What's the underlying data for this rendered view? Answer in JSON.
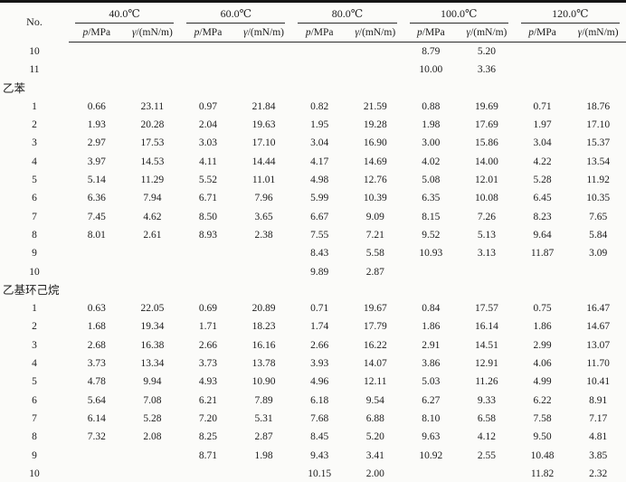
{
  "header": {
    "row_no": "No.",
    "p_symbol": "p",
    "p_unit": "/MPa",
    "gamma_symbol": "γ",
    "gamma_unit": "/(mN/m)"
  },
  "chart_data": {
    "type": "table",
    "row_header": "No.",
    "column_groups": [
      {
        "label": "40.0℃",
        "subcolumns": [
          "p/MPa",
          "γ/(mN/m)"
        ]
      },
      {
        "label": "60.0℃",
        "subcolumns": [
          "p/MPa",
          "γ/(mN/m)"
        ]
      },
      {
        "label": "80.0℃",
        "subcolumns": [
          "p/MPa",
          "γ/(mN/m)"
        ]
      },
      {
        "label": "100.0℃",
        "subcolumns": [
          "p/MPa",
          "γ/(mN/m)"
        ]
      },
      {
        "label": "120.0℃",
        "subcolumns": [
          "p/MPa",
          "γ/(mN/m)"
        ]
      }
    ],
    "sections": [
      {
        "label": "",
        "rows": [
          {
            "no": "10",
            "vals": [
              "",
              "",
              "",
              "",
              "",
              "",
              "8.79",
              "5.20",
              "",
              ""
            ]
          },
          {
            "no": "11",
            "vals": [
              "",
              "",
              "",
              "",
              "",
              "",
              "10.00",
              "3.36",
              "",
              ""
            ]
          }
        ]
      },
      {
        "label": "乙苯",
        "rows": [
          {
            "no": "1",
            "vals": [
              "0.66",
              "23.11",
              "0.97",
              "21.84",
              "0.82",
              "21.59",
              "0.88",
              "19.69",
              "0.71",
              "18.76"
            ]
          },
          {
            "no": "2",
            "vals": [
              "1.93",
              "20.28",
              "2.04",
              "19.63",
              "1.95",
              "19.28",
              "1.98",
              "17.69",
              "1.97",
              "17.10"
            ]
          },
          {
            "no": "3",
            "vals": [
              "2.97",
              "17.53",
              "3.03",
              "17.10",
              "3.04",
              "16.90",
              "3.00",
              "15.86",
              "3.04",
              "15.37"
            ]
          },
          {
            "no": "4",
            "vals": [
              "3.97",
              "14.53",
              "4.11",
              "14.44",
              "4.17",
              "14.69",
              "4.02",
              "14.00",
              "4.22",
              "13.54"
            ]
          },
          {
            "no": "5",
            "vals": [
              "5.14",
              "11.29",
              "5.52",
              "11.01",
              "4.98",
              "12.76",
              "5.08",
              "12.01",
              "5.28",
              "11.92"
            ]
          },
          {
            "no": "6",
            "vals": [
              "6.36",
              "7.94",
              "6.71",
              "7.96",
              "5.99",
              "10.39",
              "6.35",
              "10.08",
              "6.45",
              "10.35"
            ]
          },
          {
            "no": "7",
            "vals": [
              "7.45",
              "4.62",
              "8.50",
              "3.65",
              "6.67",
              "9.09",
              "8.15",
              "7.26",
              "8.23",
              "7.65"
            ]
          },
          {
            "no": "8",
            "vals": [
              "8.01",
              "2.61",
              "8.93",
              "2.38",
              "7.55",
              "7.21",
              "9.52",
              "5.13",
              "9.64",
              "5.84"
            ]
          },
          {
            "no": "9",
            "vals": [
              "",
              "",
              "",
              "",
              "8.43",
              "5.58",
              "10.93",
              "3.13",
              "11.87",
              "3.09"
            ]
          },
          {
            "no": "10",
            "vals": [
              "",
              "",
              "",
              "",
              "9.89",
              "2.87",
              "",
              "",
              "",
              ""
            ]
          }
        ]
      },
      {
        "label": "乙基环己烷",
        "rows": [
          {
            "no": "1",
            "vals": [
              "0.63",
              "22.05",
              "0.69",
              "20.89",
              "0.71",
              "19.67",
              "0.84",
              "17.57",
              "0.75",
              "16.47"
            ]
          },
          {
            "no": "2",
            "vals": [
              "1.68",
              "19.34",
              "1.71",
              "18.23",
              "1.74",
              "17.79",
              "1.86",
              "16.14",
              "1.86",
              "14.67"
            ]
          },
          {
            "no": "3",
            "vals": [
              "2.68",
              "16.38",
              "2.66",
              "16.16",
              "2.66",
              "16.22",
              "2.91",
              "14.51",
              "2.99",
              "13.07"
            ]
          },
          {
            "no": "4",
            "vals": [
              "3.73",
              "13.34",
              "3.73",
              "13.78",
              "3.93",
              "14.07",
              "3.86",
              "12.91",
              "4.06",
              "11.70"
            ]
          },
          {
            "no": "5",
            "vals": [
              "4.78",
              "9.94",
              "4.93",
              "10.90",
              "4.96",
              "12.11",
              "5.03",
              "11.26",
              "4.99",
              "10.41"
            ]
          },
          {
            "no": "6",
            "vals": [
              "5.64",
              "7.08",
              "6.21",
              "7.89",
              "6.18",
              "9.54",
              "6.27",
              "9.33",
              "6.22",
              "8.91"
            ]
          },
          {
            "no": "7",
            "vals": [
              "6.14",
              "5.28",
              "7.20",
              "5.31",
              "7.68",
              "6.88",
              "8.10",
              "6.58",
              "7.58",
              "7.17"
            ]
          },
          {
            "no": "8",
            "vals": [
              "7.32",
              "2.08",
              "8.25",
              "2.87",
              "8.45",
              "5.20",
              "9.63",
              "4.12",
              "9.50",
              "4.81"
            ]
          },
          {
            "no": "9",
            "vals": [
              "",
              "",
              "8.71",
              "1.98",
              "9.43",
              "3.41",
              "10.92",
              "2.55",
              "10.48",
              "3.85"
            ]
          },
          {
            "no": "10",
            "vals": [
              "",
              "",
              "",
              "",
              "10.15",
              "2.00",
              "",
              "",
              "11.82",
              "2.32"
            ]
          }
        ]
      }
    ]
  }
}
